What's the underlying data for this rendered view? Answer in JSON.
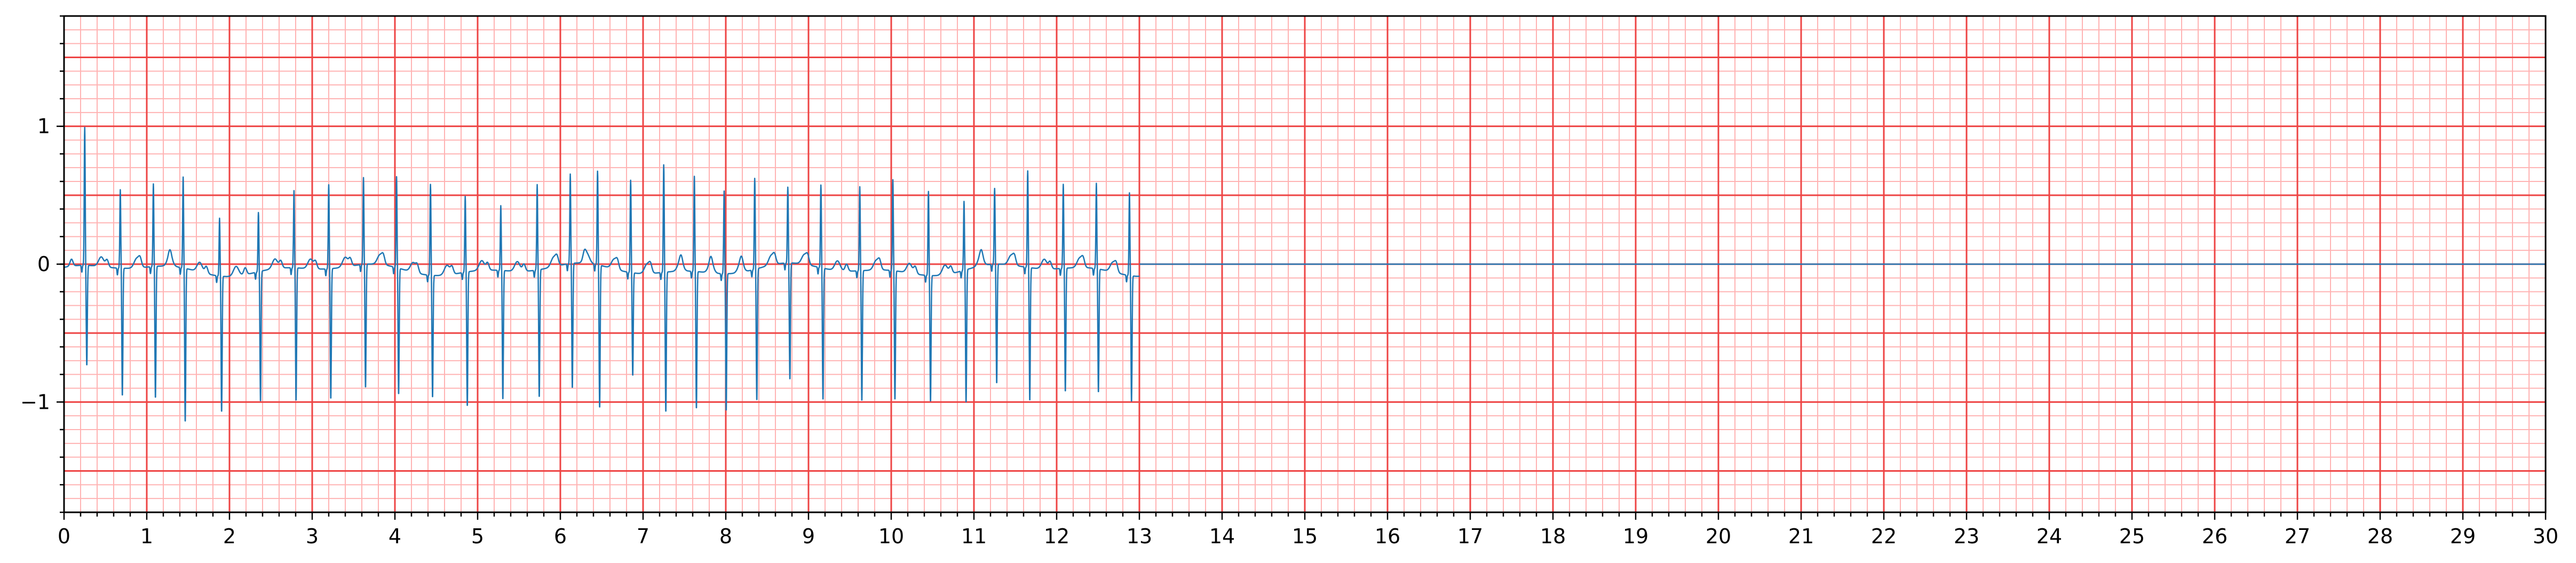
{
  "chart_data": {
    "type": "line",
    "title": "",
    "xlabel": "",
    "ylabel": "",
    "xlim": [
      0,
      30
    ],
    "ylim": [
      -1.8,
      1.8
    ],
    "grid": {
      "major_x_step": 1,
      "major_y_step": 0.5,
      "minor_x_step": 0.2,
      "minor_y_step": 0.1,
      "major_color": "#ee4444",
      "minor_color": "#ffb3b3"
    },
    "x_ticks": [
      0,
      1,
      2,
      3,
      4,
      5,
      6,
      7,
      8,
      9,
      10,
      11,
      12,
      13,
      14,
      15,
      16,
      17,
      18,
      19,
      20,
      21,
      22,
      23,
      24,
      25,
      26,
      27,
      28,
      29,
      30
    ],
    "y_ticks": [
      {
        "value": 1,
        "label": "1"
      },
      {
        "value": 0,
        "label": "0"
      },
      {
        "value": -1,
        "label": "−1"
      }
    ],
    "series": [
      {
        "color": "#1f77b4",
        "signal_end": 13.0,
        "baseline_after_end": 0,
        "beats": [
          {
            "t": 0.25,
            "r": 1.0,
            "s": -0.73
          },
          {
            "t": 0.68,
            "r": 0.57,
            "s": -0.93
          },
          {
            "t": 1.08,
            "r": 0.6,
            "s": -0.96
          },
          {
            "t": 1.44,
            "r": 0.66,
            "s": -1.12
          },
          {
            "t": 1.88,
            "r": 0.42,
            "s": -0.99
          },
          {
            "t": 2.35,
            "r": 0.43,
            "s": -0.95
          },
          {
            "t": 2.78,
            "r": 0.56,
            "s": -0.97
          },
          {
            "t": 3.2,
            "r": 0.61,
            "s": -0.95
          },
          {
            "t": 3.62,
            "r": 0.63,
            "s": -0.9
          },
          {
            "t": 4.02,
            "r": 0.66,
            "s": -0.92
          },
          {
            "t": 4.43,
            "r": 0.66,
            "s": -0.89
          },
          {
            "t": 4.85,
            "r": 0.55,
            "s": -0.98
          },
          {
            "t": 5.28,
            "r": 0.47,
            "s": -0.94
          },
          {
            "t": 5.72,
            "r": 0.62,
            "s": -0.93
          },
          {
            "t": 6.12,
            "r": 0.65,
            "s": -0.91
          },
          {
            "t": 6.45,
            "r": 0.68,
            "s": -1.04
          },
          {
            "t": 6.85,
            "r": 0.67,
            "s": -0.75
          },
          {
            "t": 7.25,
            "r": 0.78,
            "s": -1.02
          },
          {
            "t": 7.62,
            "r": 0.69,
            "s": -1.0
          },
          {
            "t": 7.98,
            "r": 0.6,
            "s": -1.0
          },
          {
            "t": 8.35,
            "r": 0.66,
            "s": -0.96
          },
          {
            "t": 8.75,
            "r": 0.55,
            "s": -0.85
          },
          {
            "t": 9.15,
            "r": 0.6,
            "s": -0.96
          },
          {
            "t": 9.62,
            "r": 0.61,
            "s": -0.95
          },
          {
            "t": 10.02,
            "r": 0.66,
            "s": -0.94
          },
          {
            "t": 10.45,
            "r": 0.61,
            "s": -0.92
          },
          {
            "t": 10.88,
            "r": 0.5,
            "s": -0.97
          },
          {
            "t": 11.25,
            "r": 0.55,
            "s": -0.87
          },
          {
            "t": 11.65,
            "r": 0.7,
            "s": -0.97
          },
          {
            "t": 12.08,
            "r": 0.61,
            "s": -0.9
          },
          {
            "t": 12.48,
            "r": 0.62,
            "s": -0.9
          },
          {
            "t": 12.88,
            "r": 0.6,
            "s": -0.92
          }
        ]
      }
    ]
  }
}
